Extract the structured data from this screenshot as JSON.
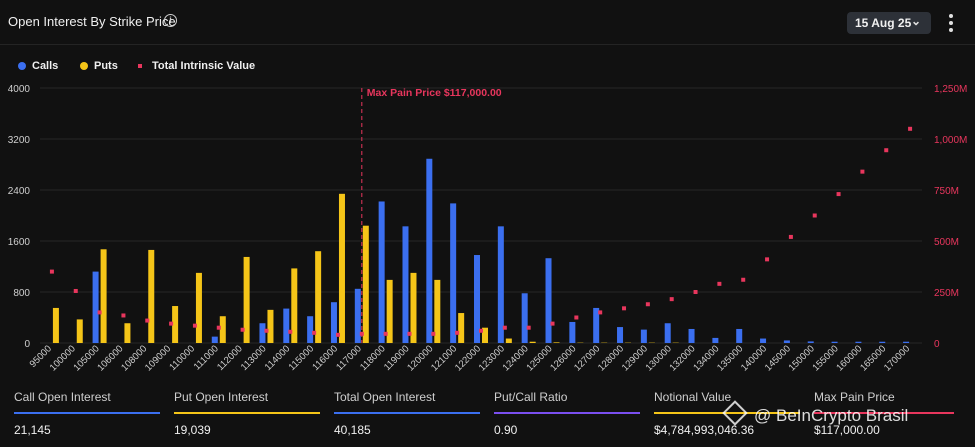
{
  "header": {
    "title": "Open Interest By Strike Price",
    "date": "15 Aug 25"
  },
  "icons": {
    "info": "info-icon",
    "dropdown": "chevron-down-icon",
    "menu": "kebab-menu-icon"
  },
  "legend": [
    {
      "label": "Calls",
      "color": "#3b6ff0",
      "shape": "circle"
    },
    {
      "label": "Puts",
      "color": "#f5c518",
      "shape": "circle"
    },
    {
      "label": "Total Intrinsic Value",
      "color": "#e8365d",
      "shape": "square"
    }
  ],
  "chart_data": {
    "type": "bar",
    "annotation": "Max Pain Price $117,000.00",
    "annotation_x": "117000",
    "categories": [
      "95000",
      "100000",
      "105000",
      "106000",
      "108000",
      "109000",
      "110000",
      "111000",
      "112000",
      "113000",
      "114000",
      "115000",
      "116000",
      "117000",
      "118000",
      "119000",
      "120000",
      "121000",
      "122000",
      "123000",
      "124000",
      "125000",
      "126000",
      "127000",
      "128000",
      "129000",
      "130000",
      "132000",
      "134000",
      "135000",
      "140000",
      "145000",
      "150000",
      "155000",
      "160000",
      "165000",
      "170000"
    ],
    "series": [
      {
        "name": "Calls",
        "axis": "left",
        "color": "#3b6ff0",
        "values": [
          0,
          0,
          1120,
          0,
          0,
          0,
          0,
          100,
          0,
          310,
          540,
          420,
          640,
          850,
          2220,
          1830,
          2890,
          2190,
          1380,
          1830,
          780,
          1330,
          330,
          550,
          250,
          210,
          310,
          220,
          80,
          220,
          70,
          40,
          25,
          20,
          20,
          20,
          20
        ]
      },
      {
        "name": "Puts",
        "axis": "left",
        "color": "#f5c518",
        "values": [
          550,
          370,
          1470,
          310,
          1460,
          580,
          1100,
          420,
          1350,
          520,
          1170,
          1440,
          2340,
          1840,
          990,
          1100,
          990,
          470,
          240,
          70,
          20,
          10,
          5,
          5,
          5,
          5,
          5,
          0,
          0,
          0,
          0,
          0,
          0,
          0,
          0,
          0,
          0
        ]
      },
      {
        "name": "Total Intrinsic Value",
        "axis": "right",
        "color": "#e8365d",
        "type": "scatter",
        "values": [
          350,
          255,
          150,
          135,
          110,
          95,
          85,
          75,
          65,
          60,
          55,
          50,
          40,
          45,
          45,
          45,
          45,
          50,
          60,
          75,
          75,
          95,
          125,
          150,
          170,
          190,
          215,
          250,
          290,
          310,
          410,
          520,
          625,
          730,
          840,
          945,
          1050
        ]
      }
    ],
    "ylim_left": [
      0,
      4000
    ],
    "yticks_left": [
      "4000",
      "3200",
      "2400",
      "1600",
      "800",
      "0"
    ],
    "ylim_right": [
      0,
      1250
    ],
    "yticks_right": [
      "1,250M",
      "1,000M",
      "750M",
      "500M",
      "250M",
      "0"
    ]
  },
  "stats": [
    {
      "label": "Call Open Interest",
      "value": "21,145",
      "color": "#3b6ff0"
    },
    {
      "label": "Put Open Interest",
      "value": "19,039",
      "color": "#f5c518"
    },
    {
      "label": "Total Open Interest",
      "value": "40,185",
      "color": "#3b6ff0"
    },
    {
      "label": "Put/Call Ratio",
      "value": "0.90",
      "color": "#7b4ff0"
    },
    {
      "label": "Notional Value",
      "value": "$4,784,993,046.36",
      "color": "#f5c518"
    },
    {
      "label": "Max Pain Price",
      "value": "$117,000.00",
      "color": "#e8365d"
    }
  ],
  "watermark": "@ BeInCrypto Brasil"
}
